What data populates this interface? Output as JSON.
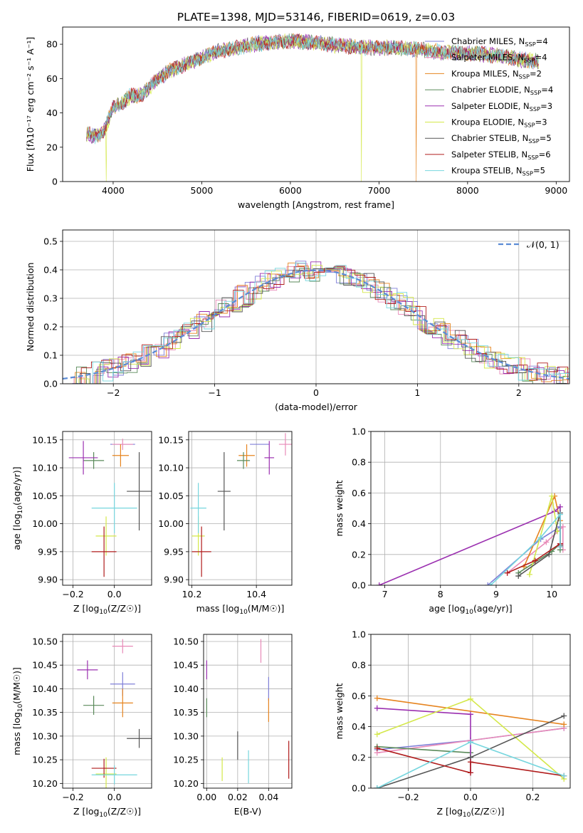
{
  "series_colors": [
    "#7f7fd8",
    "#e88ab8",
    "#e6841f",
    "#5a8a5a",
    "#9b30b0",
    "#d4e84a",
    "#555555",
    "#b01c1c",
    "#76d6de"
  ],
  "chart_data": [
    {
      "type": "line",
      "title": "PLATE=1398, MJD=53146, FIBERID=0619, z=0.03",
      "xlabel": "wavelength [Angstrom, rest frame]",
      "ylabel": "Flux [fλ10⁻¹⁷ erg cm⁻² s⁻¹ A⁻¹]",
      "xlim": [
        3430,
        9150
      ],
      "ylim": [
        0,
        90
      ],
      "xticks": [
        4000,
        5000,
        6000,
        7000,
        8000,
        9000
      ],
      "yticks": [
        0,
        20,
        40,
        60,
        80
      ],
      "legend_placement": "right",
      "legend": [
        "Chabrier MILES, N_SSP=4",
        "Salpeter MILES, N_SSP=4",
        "Kroupa MILES, N_SSP=2",
        "Chabrier ELODIE, N_SSP=4",
        "Salpeter ELODIE, N_SSP=3",
        "Kroupa ELODIE, N_SSP=3",
        "Chabrier STELIB, N_SSP=5",
        "Salpeter STELIB, N_SSP=6",
        "Kroupa STELIB, N_SSP=5"
      ],
      "continuum_x": [
        3700,
        3800,
        3900,
        4000,
        4100,
        4200,
        4300,
        4400,
        4500,
        4600,
        4700,
        4800,
        4900,
        5000,
        5200,
        5400,
        5600,
        5800,
        6000,
        6200,
        6400,
        6600,
        6800,
        7000,
        7200,
        7400,
        7600,
        7800,
        8000,
        8200,
        8400,
        8600,
        8800
      ],
      "continuum_y": [
        28,
        26,
        30,
        43,
        46,
        50,
        50,
        54,
        60,
        63,
        66,
        68,
        70,
        72,
        76,
        78,
        80,
        81,
        82,
        81,
        80,
        79,
        78,
        78,
        78,
        77,
        76,
        75,
        75,
        74,
        73,
        71,
        70
      ],
      "dips": [
        {
          "x": 3920,
          "series": 5,
          "y": 0
        },
        {
          "x": 6800,
          "series": 5,
          "y": 0
        },
        {
          "x": 7420,
          "series": 2,
          "y": 0
        }
      ]
    },
    {
      "type": "line",
      "xlabel": "(data-model)/error",
      "ylabel": "Normed distribution",
      "xlim": [
        -2.5,
        2.5
      ],
      "ylim": [
        0,
        0.54
      ],
      "xticks": [
        -2,
        -1,
        0,
        1,
        2
      ],
      "yticks": [
        0.0,
        0.1,
        0.2,
        0.3,
        0.4,
        0.5
      ],
      "legend": [
        "𝒩(0, 1)"
      ],
      "legend_placement": "top-right",
      "bin_width": 0.1
    },
    {
      "type": "scatter",
      "xlabel": "Z [log10(Z/Z☉)]",
      "ylabel": "age  [log10(age/yr)]",
      "xlim": [
        -0.25,
        0.18
      ],
      "ylim": [
        9.89,
        10.165
      ],
      "xticks": [
        -0.2,
        0.0
      ],
      "yticks": [
        9.9,
        9.95,
        10.0,
        10.05,
        10.1,
        10.15
      ],
      "points": [
        {
          "x": 0.04,
          "y": 10.142,
          "xerr": 0.06,
          "yerr": 0.0
        },
        {
          "x": 0.04,
          "y": 10.142,
          "xerr": 0.05,
          "yerr": 0.01
        },
        {
          "x": 0.03,
          "y": 10.122,
          "xerr": 0.04,
          "yerr": 0.02
        },
        {
          "x": -0.1,
          "y": 10.113,
          "xerr": 0.05,
          "yerr": 0.015
        },
        {
          "x": -0.15,
          "y": 10.118,
          "xerr": 0.07,
          "yerr": 0.03
        },
        {
          "x": -0.04,
          "y": 9.978,
          "xerr": 0.05,
          "yerr": 0.035
        },
        {
          "x": 0.12,
          "y": 10.058,
          "xerr": 0.06,
          "yerr": 0.07
        },
        {
          "x": -0.05,
          "y": 9.95,
          "xerr": 0.06,
          "yerr": 0.045
        },
        {
          "x": 0.0,
          "y": 10.028,
          "xerr": 0.11,
          "yerr": 0.045
        }
      ]
    },
    {
      "type": "scatter",
      "xlabel": "mass [log10(M/M☉)]",
      "xlim": [
        10.19,
        10.51
      ],
      "ylim": [
        9.89,
        10.165
      ],
      "xticks": [
        10.2,
        10.4
      ],
      "yticks": [
        9.9,
        9.95,
        10.0,
        10.05,
        10.1,
        10.15
      ],
      "points": [
        {
          "x": 10.41,
          "y": 10.142,
          "xerr": 0.03,
          "yerr": 0.0
        },
        {
          "x": 10.49,
          "y": 10.142,
          "xerr": 0.02,
          "yerr": 0.02
        },
        {
          "x": 10.37,
          "y": 10.122,
          "xerr": 0.025,
          "yerr": 0.02
        },
        {
          "x": 10.36,
          "y": 10.113,
          "xerr": 0.02,
          "yerr": 0.015
        },
        {
          "x": 10.44,
          "y": 10.118,
          "xerr": 0.015,
          "yerr": 0.03
        },
        {
          "x": 10.22,
          "y": 9.978,
          "xerr": 0.02,
          "yerr": 0.035
        },
        {
          "x": 10.3,
          "y": 10.058,
          "xerr": 0.02,
          "yerr": 0.07
        },
        {
          "x": 10.23,
          "y": 9.95,
          "xerr": 0.03,
          "yerr": 0.045
        },
        {
          "x": 10.22,
          "y": 10.028,
          "xerr": 0.025,
          "yerr": 0.045
        }
      ]
    },
    {
      "type": "line",
      "xlabel": "age  [log10(age/yr)]",
      "ylabel": "mass weight",
      "xlim": [
        6.75,
        10.33
      ],
      "ylim": [
        0,
        1
      ],
      "xticks": [
        7,
        8,
        9,
        10
      ],
      "yticks": [
        0.0,
        0.2,
        0.4,
        0.6,
        0.8,
        1.0
      ],
      "series": [
        {
          "x": [
            8.85,
            9.8,
            10.15,
            10.15
          ],
          "y": [
            0,
            0.3,
            0.38,
            0.25
          ]
        },
        {
          "x": [
            9.2,
            9.9,
            10.2,
            10.2
          ],
          "y": [
            0.08,
            0.28,
            0.38,
            0.23
          ]
        },
        {
          "x": [
            9.5,
            10.05,
            10.15,
            10.15
          ],
          "y": [
            0.12,
            0.58,
            0.42,
            0.27
          ]
        },
        {
          "x": [
            9.4,
            10.0,
            10.15,
            10.15
          ],
          "y": [
            0.08,
            0.22,
            0.27,
            0.23
          ]
        },
        {
          "x": [
            6.9,
            10.05,
            10.15,
            10.15
          ],
          "y": [
            0,
            0.48,
            0.51,
            0.27
          ]
        },
        {
          "x": [
            9.6,
            10.0,
            10.1
          ],
          "y": [
            0.07,
            0.58,
            0.35
          ]
        },
        {
          "x": [
            9.4,
            9.95,
            10.15,
            10.15
          ],
          "y": [
            0.06,
            0.2,
            0.47,
            0.26
          ]
        },
        {
          "x": [
            9.2,
            9.7,
            10.15,
            10.15
          ],
          "y": [
            0.08,
            0.16,
            0.27,
            0.25
          ]
        },
        {
          "x": [
            8.9,
            9.8,
            10.15,
            10.15
          ],
          "y": [
            0,
            0.31,
            0.46,
            0.25
          ]
        }
      ]
    },
    {
      "type": "scatter",
      "xlabel": "Z [log10(Z/Z☉)]",
      "ylabel": "mass [log10(M/M☉)]",
      "xlim": [
        -0.25,
        0.18
      ],
      "ylim": [
        10.19,
        10.515
      ],
      "xticks": [
        -0.2,
        0.0
      ],
      "yticks": [
        10.2,
        10.25,
        10.3,
        10.35,
        10.4,
        10.45,
        10.5
      ],
      "points": [
        {
          "x": 0.04,
          "y": 10.41,
          "xerr": 0.06,
          "yerr": 0.025
        },
        {
          "x": 0.04,
          "y": 10.49,
          "xerr": 0.05,
          "yerr": 0.015
        },
        {
          "x": 0.04,
          "y": 10.37,
          "xerr": 0.05,
          "yerr": 0.03
        },
        {
          "x": -0.1,
          "y": 10.365,
          "xerr": 0.05,
          "yerr": 0.02
        },
        {
          "x": -0.13,
          "y": 10.44,
          "xerr": 0.05,
          "yerr": 0.02
        },
        {
          "x": -0.04,
          "y": 10.22,
          "xerr": 0.05,
          "yerr": 0.035
        },
        {
          "x": 0.12,
          "y": 10.295,
          "xerr": 0.06,
          "yerr": 0.02
        },
        {
          "x": -0.05,
          "y": 10.232,
          "xerr": 0.06,
          "yerr": 0.02
        },
        {
          "x": 0.0,
          "y": 10.218,
          "xerr": 0.11,
          "yerr": 0.02
        }
      ]
    },
    {
      "type": "scatter",
      "xlabel": "E(B-V)",
      "xlim": [
        -0.002,
        0.055
      ],
      "ylim": [
        10.19,
        10.515
      ],
      "xticks": [
        0.0,
        0.02,
        0.04
      ],
      "yticks": [
        10.2,
        10.25,
        10.3,
        10.35,
        10.4,
        10.45,
        10.5
      ],
      "points": [
        {
          "x": 0.04,
          "y": 10.4,
          "yerr": 0.025
        },
        {
          "x": 0.035,
          "y": 10.48,
          "yerr": 0.025
        },
        {
          "x": 0.04,
          "y": 10.355,
          "yerr": 0.025
        },
        {
          "x": 0.0,
          "y": 10.36,
          "yerr": 0.02
        },
        {
          "x": 0.0,
          "y": 10.44,
          "yerr": 0.02
        },
        {
          "x": 0.01,
          "y": 10.23,
          "yerr": 0.025
        },
        {
          "x": 0.02,
          "y": 10.28,
          "yerr": 0.03
        },
        {
          "x": 0.053,
          "y": 10.25,
          "yerr": 0.04
        },
        {
          "x": 0.027,
          "y": 10.235,
          "yerr": 0.035
        }
      ]
    },
    {
      "type": "line",
      "xlabel": "Z [log10(Z/Z☉)]",
      "ylabel": "mass weight",
      "xlim": [
        -0.32,
        0.32
      ],
      "ylim": [
        0,
        1
      ],
      "xticks": [
        -0.2,
        0.0,
        0.2
      ],
      "yticks": [
        0.0,
        0.2,
        0.4,
        0.6,
        0.8,
        1.0
      ],
      "series": [
        {
          "x": [
            -0.3,
            0.0,
            0.3
          ],
          "y": [
            0.25,
            0.31,
            0.39
          ]
        },
        {
          "x": [
            -0.3,
            0.0,
            0.3
          ],
          "y": [
            0.23,
            0.31,
            0.39
          ]
        },
        {
          "x": [
            -0.3,
            0.3
          ],
          "y": [
            0.585,
            0.415
          ]
        },
        {
          "x": [
            -0.3,
            0.0
          ],
          "y": [
            0.27,
            0.23
          ]
        },
        {
          "x": [
            -0.3,
            0.0,
            0.0
          ],
          "y": [
            0.52,
            0.48,
            0.1
          ]
        },
        {
          "x": [
            -0.3,
            0.0,
            0.3
          ],
          "y": [
            0.35,
            0.58,
            0.06
          ]
        },
        {
          "x": [
            -0.3,
            0.0,
            0.3
          ],
          "y": [
            0.0,
            0.2,
            0.47
          ]
        },
        {
          "x": [
            -0.3,
            0.0,
            0.0,
            0.3
          ],
          "y": [
            0.26,
            0.1,
            0.17,
            0.08
          ]
        },
        {
          "x": [
            -0.3,
            0.0,
            0.3
          ],
          "y": [
            0.0,
            0.3,
            0.08
          ]
        }
      ]
    }
  ],
  "panel_texts": {
    "title": "PLATE=1398, MJD=53146, FIBERID=0619, z=0.03"
  }
}
